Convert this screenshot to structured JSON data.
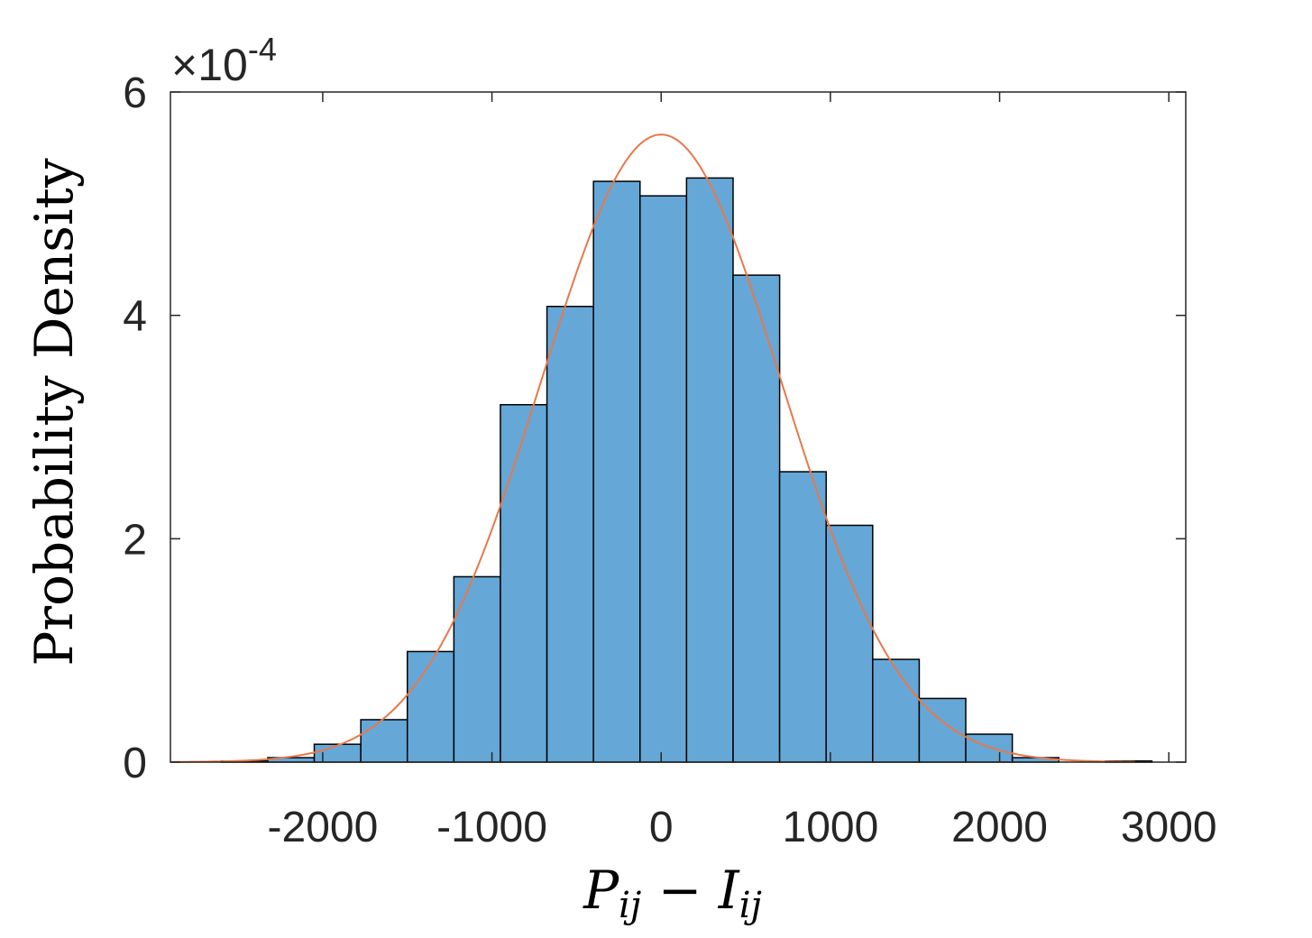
{
  "chart_data": {
    "type": "bar",
    "subtype": "histogram",
    "xlabel": "P_ij − I_ij",
    "ylabel": "Probability Density",
    "xlim": [
      -2900,
      3100
    ],
    "ylim": [
      0,
      0.0006
    ],
    "y_scale_multiplier": "×10",
    "y_scale_exponent": "-4",
    "x_ticks": [
      -2000,
      -1000,
      0,
      1000,
      2000,
      3000
    ],
    "x_tick_labels": [
      "-2000",
      "-1000",
      "0",
      "1000",
      "2000",
      "3000"
    ],
    "y_ticks": [
      0,
      0.0002,
      0.0004,
      0.0006
    ],
    "y_tick_labels": [
      "0",
      "2",
      "4",
      "6"
    ],
    "grid": false,
    "bar_color": "#65A8D8",
    "bar_edge_color": "#000000",
    "bin_width": 275,
    "bin_left_edges": [
      -2600,
      -2325,
      -2050,
      -1775,
      -1500,
      -1225,
      -950,
      -675,
      -400,
      -125,
      150,
      425,
      700,
      975,
      1250,
      1525,
      1800,
      2075,
      2350,
      2625
    ],
    "values": [
      1e-06,
      4e-06,
      1.6e-05,
      3.8e-05,
      9.9e-05,
      0.000166,
      0.00032,
      0.000408,
      0.00052,
      0.000507,
      0.000523,
      0.000436,
      0.00026,
      0.000212,
      9.2e-05,
      5.7e-05,
      2.5e-05,
      4e-06,
      0.0,
      1e-06
    ],
    "series": [
      {
        "type": "line",
        "color": "#E8784A",
        "fit": "normal",
        "mean": 0,
        "std": 710
      }
    ]
  }
}
